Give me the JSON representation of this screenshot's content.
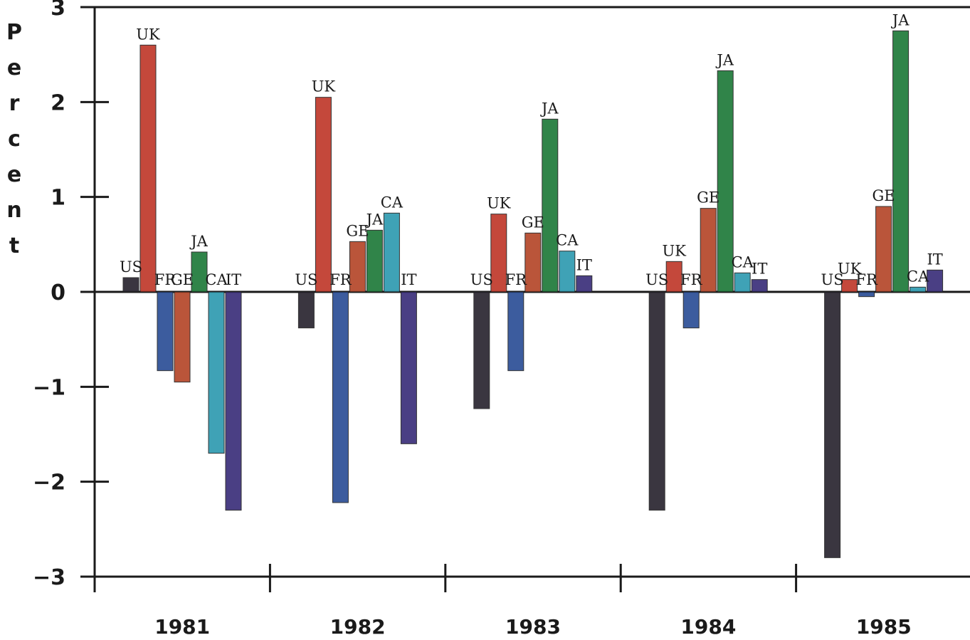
{
  "chart_data": {
    "type": "bar",
    "ylabel": "Percent",
    "ylim": [
      -3,
      3
    ],
    "yticks": [
      "3",
      "2",
      "1",
      "0",
      "-1",
      "-2",
      "-3"
    ],
    "categories": [
      "1981",
      "1982",
      "1983",
      "1984",
      "1985"
    ],
    "series": [
      {
        "name": "US",
        "color": "#2a2530",
        "values": [
          0.15,
          -0.38,
          -1.23,
          -2.3,
          -2.8
        ]
      },
      {
        "name": "UK",
        "color": "#c0392b",
        "values": [
          2.6,
          2.05,
          0.82,
          0.32,
          0.13
        ]
      },
      {
        "name": "FR",
        "color": "#2c4f96",
        "values": [
          -0.83,
          -2.22,
          -0.83,
          -0.38,
          -0.05
        ]
      },
      {
        "name": "GE",
        "color": "#b5472a",
        "values": [
          -0.95,
          0.53,
          0.62,
          0.88,
          0.9
        ]
      },
      {
        "name": "JA",
        "color": "#1f7a3a",
        "values": [
          0.42,
          0.65,
          1.82,
          2.33,
          2.75
        ]
      },
      {
        "name": "CA",
        "color": "#2f9bb0",
        "values": [
          -1.7,
          0.83,
          0.43,
          0.2,
          0.05
        ]
      },
      {
        "name": "IT",
        "color": "#3b2f7a",
        "values": [
          -2.3,
          -1.6,
          0.17,
          0.13,
          0.23
        ]
      }
    ],
    "grid": false,
    "legend": "none"
  }
}
